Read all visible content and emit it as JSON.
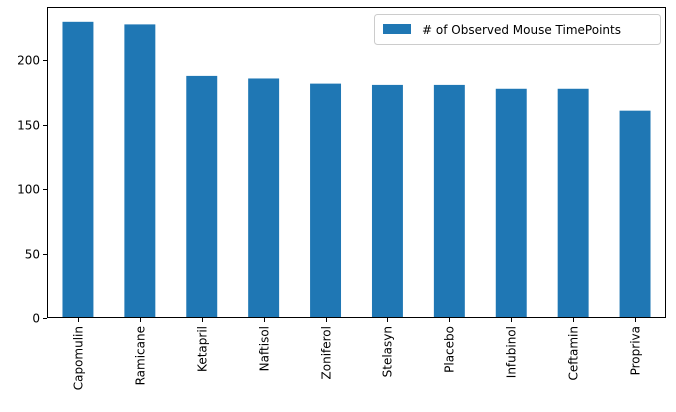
{
  "chart_data": {
    "type": "bar",
    "categories": [
      "Capomulin",
      "Ramicane",
      "Ketapril",
      "Naftisol",
      "Zoniferol",
      "Stelasyn",
      "Placebo",
      "Infubinol",
      "Ceftamin",
      "Propriva"
    ],
    "series": [
      {
        "name": "# of Observed Mouse TimePoints",
        "values": [
          230,
          228,
          188,
          186,
          182,
          181,
          181,
          178,
          178,
          161
        ],
        "color": "#1f77b4"
      }
    ],
    "title": "",
    "xlabel": "",
    "ylabel": "",
    "ylim": [
      0,
      241.5
    ],
    "yticks": [
      0,
      50,
      100,
      150,
      200
    ],
    "grid": false,
    "legend_position": "top-right",
    "x_tick_rotation": 90
  }
}
